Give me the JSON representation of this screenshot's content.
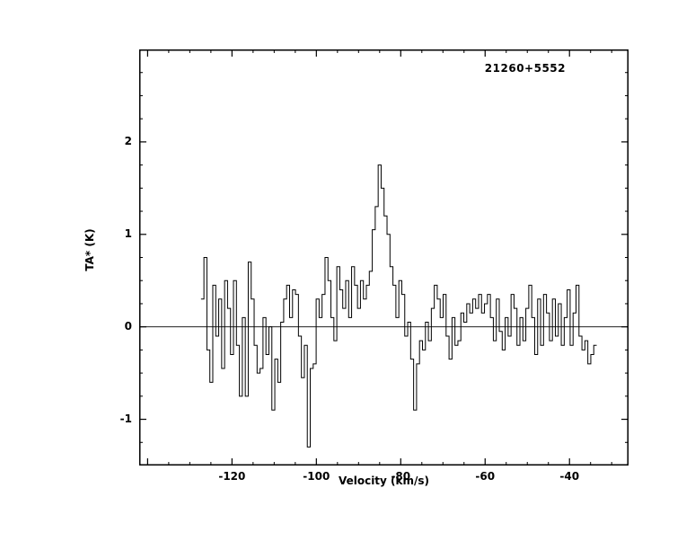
{
  "chart_data": {
    "type": "line",
    "style": "histogram-step",
    "title": "21260+5552",
    "xlabel": "Velocity (km/s)",
    "ylabel": "TA* (K)",
    "xlim": [
      -142,
      -26
    ],
    "ylim": [
      -1.5,
      3.0
    ],
    "grid": false,
    "legend": "none",
    "line_color": "#000000",
    "background_color": "#ffffff",
    "zero_line": true,
    "xticks": [
      {
        "v": -140,
        "label": ""
      },
      {
        "v": -120,
        "label": "-120"
      },
      {
        "v": -100,
        "label": "-100"
      },
      {
        "v": -80,
        "label": "-80"
      },
      {
        "v": -60,
        "label": "-60"
      },
      {
        "v": -40,
        "label": "-40"
      }
    ],
    "yticks": [
      {
        "v": -1,
        "label": "-1"
      },
      {
        "v": 0,
        "label": "0"
      },
      {
        "v": 1,
        "label": "1"
      },
      {
        "v": 2,
        "label": "2"
      }
    ],
    "x_minor_step": 5,
    "y_minor_step": 0.25,
    "x_start": -127.0,
    "dx": 0.7,
    "values": [
      0.3,
      0.75,
      -0.25,
      -0.6,
      0.45,
      -0.1,
      0.3,
      -0.45,
      0.5,
      0.2,
      -0.3,
      0.5,
      -0.2,
      -0.75,
      0.1,
      -0.75,
      0.7,
      0.3,
      -0.2,
      -0.5,
      -0.45,
      0.1,
      -0.3,
      0.0,
      -0.9,
      -0.35,
      -0.6,
      0.05,
      0.3,
      0.45,
      0.1,
      0.4,
      0.35,
      -0.1,
      -0.55,
      -0.2,
      -1.3,
      -0.45,
      -0.4,
      0.3,
      0.1,
      0.35,
      0.75,
      0.5,
      0.1,
      -0.15,
      0.65,
      0.4,
      0.2,
      0.5,
      0.1,
      0.65,
      0.45,
      0.2,
      0.5,
      0.3,
      0.45,
      0.6,
      1.05,
      1.3,
      1.75,
      1.5,
      1.2,
      1.0,
      0.65,
      0.45,
      0.1,
      0.5,
      0.35,
      -0.1,
      0.05,
      -0.35,
      -0.9,
      -0.4,
      -0.15,
      -0.25,
      0.05,
      -0.15,
      0.2,
      0.45,
      0.3,
      0.1,
      0.35,
      -0.1,
      -0.35,
      0.1,
      -0.2,
      -0.15,
      0.15,
      0.05,
      0.25,
      0.15,
      0.3,
      0.2,
      0.35,
      0.15,
      0.25,
      0.35,
      0.1,
      -0.15,
      0.3,
      -0.05,
      -0.25,
      0.1,
      -0.1,
      0.35,
      0.2,
      -0.2,
      0.1,
      -0.15,
      0.2,
      0.45,
      0.1,
      -0.3,
      0.3,
      -0.2,
      0.35,
      0.15,
      -0.15,
      0.3,
      -0.1,
      0.25,
      -0.2,
      0.1,
      0.4,
      -0.2,
      0.15,
      0.45,
      -0.1,
      -0.25,
      -0.15,
      -0.4,
      -0.3,
      -0.2
    ]
  }
}
